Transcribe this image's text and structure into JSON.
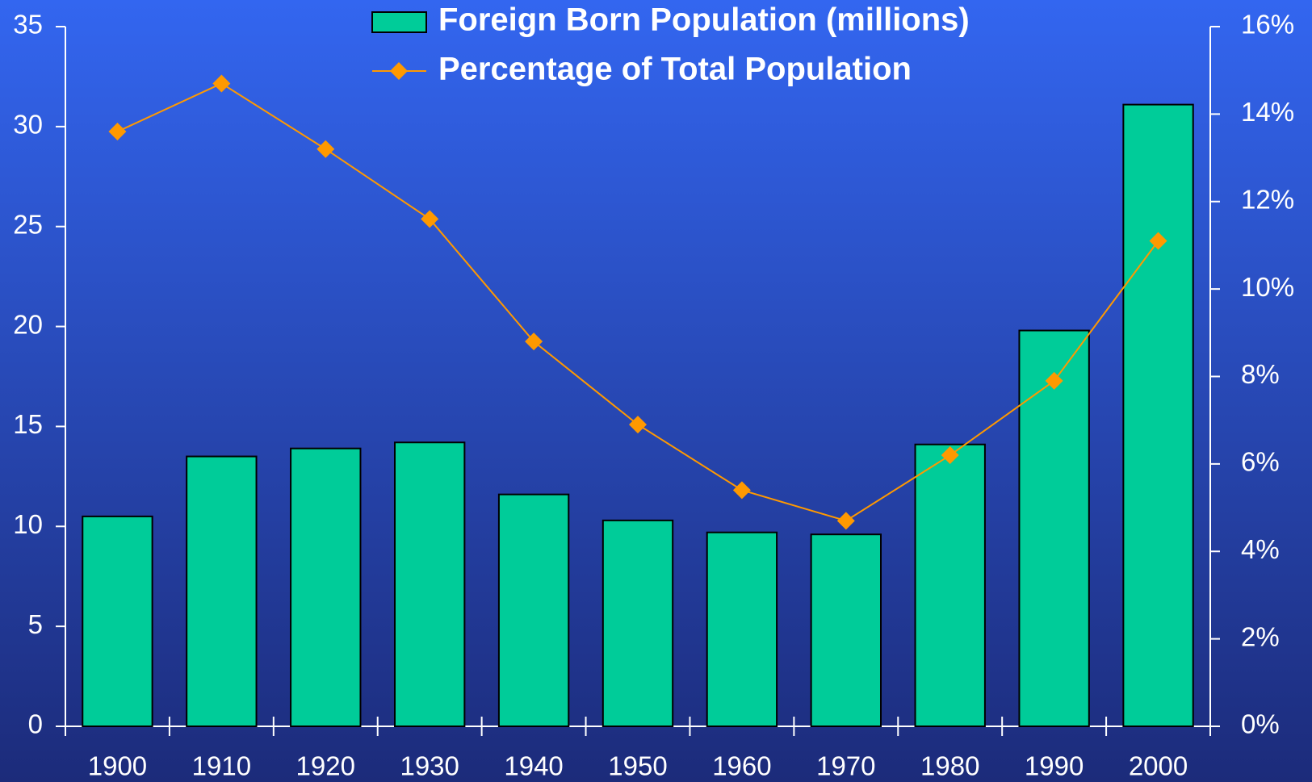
{
  "chart_data": {
    "type": "bar-line",
    "categories": [
      "1900",
      "1910",
      "1920",
      "1930",
      "1940",
      "1950",
      "1960",
      "1970",
      "1980",
      "1990",
      "2000"
    ],
    "series": [
      {
        "name": "Foreign Born Population (millions)",
        "type": "bar",
        "color": "#00cc99",
        "values": [
          10.5,
          13.5,
          13.9,
          14.2,
          11.6,
          10.3,
          9.7,
          9.6,
          14.1,
          19.8,
          31.1
        ]
      },
      {
        "name": "Percentage of Total Population",
        "type": "line",
        "color": "#ff9900",
        "axis": "y2",
        "values": [
          13.6,
          14.7,
          13.2,
          11.6,
          8.8,
          6.9,
          5.4,
          4.7,
          6.2,
          7.9,
          11.1
        ]
      }
    ],
    "ylim": [
      0,
      35
    ],
    "yticks": [
      0,
      5,
      10,
      15,
      20,
      25,
      30,
      35
    ],
    "y2lim": [
      0,
      16
    ],
    "y2ticks": [
      {
        "value": 0,
        "label": "0%"
      },
      {
        "value": 2,
        "label": "2%"
      },
      {
        "value": 4,
        "label": "4%"
      },
      {
        "value": 6,
        "label": "6%"
      },
      {
        "value": 8,
        "label": "8%"
      },
      {
        "value": 10,
        "label": "10%"
      },
      {
        "value": 12,
        "label": "12%"
      },
      {
        "value": 14,
        "label": "14%"
      },
      {
        "value": 16,
        "label": "16%"
      }
    ],
    "legend": "top"
  }
}
